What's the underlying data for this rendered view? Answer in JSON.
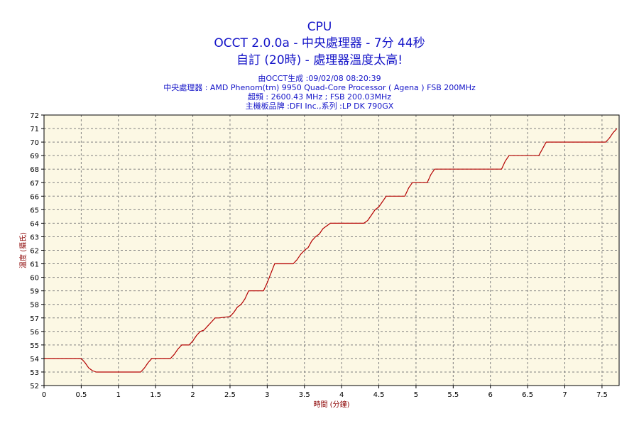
{
  "header": {
    "title": "CPU",
    "subtitle": "OCCT 2.0.0a - 中央處理器 - 7分 44秒",
    "subtitle2": "自訂 (20時) - 處理器溫度太高!",
    "info_generated": "由OCCT生成 :09/02/08 08:20:39",
    "info_cpu": "中央處理器 : AMD Phenom(tm) 9950 Quad-Core Processor ( Agena ) FSB 200MHz",
    "info_freq": "超頻 : 2600.43 MHz ; FSB 200.03MHz",
    "info_board": "主機板品牌 :DFI Inc.,系列 :LP DK 790GX"
  },
  "colors": {
    "plot_bg": "#fcf8e4",
    "line": "#b40000",
    "grid": "#808080",
    "title": "#1414c8",
    "axis_title": "#8b0000"
  },
  "chart_data": {
    "type": "line",
    "xlabel": "時間 (分鐘)",
    "ylabel": "溫度 (攝氏)",
    "xlim": [
      0,
      7.73
    ],
    "ylim": [
      52,
      72
    ],
    "xticks": [
      0,
      0.5,
      1,
      1.5,
      2,
      2.5,
      3,
      3.5,
      4,
      4.5,
      5,
      5.5,
      6,
      6.5,
      7,
      7.5
    ],
    "xtick_labels": [
      "0",
      "0.5",
      "1",
      "1.5",
      "2",
      "2.5",
      "3",
      "3.5",
      "4",
      "4.5",
      "5",
      "5.5",
      "6",
      "6.5",
      "7",
      "7.5"
    ],
    "yticks": [
      52,
      53,
      54,
      55,
      56,
      57,
      58,
      59,
      60,
      61,
      62,
      63,
      64,
      65,
      66,
      67,
      68,
      69,
      70,
      71,
      72
    ],
    "ytick_labels": [
      "52",
      "53",
      "54",
      "55",
      "56",
      "57",
      "58",
      "59",
      "60",
      "61",
      "62",
      "63",
      "64",
      "65",
      "66",
      "67",
      "68",
      "69",
      "70",
      "71",
      "72"
    ],
    "grid": true,
    "series": [
      {
        "x": [
          0,
          0.5,
          0.55,
          0.6,
          0.65,
          0.7,
          1.3,
          1.35,
          1.4,
          1.45,
          1.7,
          1.75,
          1.8,
          1.85,
          1.95,
          2.0,
          2.05,
          2.1,
          2.15,
          2.2,
          2.25,
          2.3,
          2.35,
          2.5,
          2.55,
          2.6,
          2.65,
          2.7,
          2.75,
          2.95,
          3.0,
          3.05,
          3.1,
          3.35,
          3.4,
          3.45,
          3.5,
          3.55,
          3.6,
          3.65,
          3.7,
          3.75,
          3.85,
          3.9,
          4.3,
          4.35,
          4.4,
          4.45,
          4.5,
          4.55,
          4.6,
          4.65,
          4.85,
          4.9,
          4.95,
          5.15,
          5.2,
          5.25,
          5.3,
          6.15,
          6.2,
          6.25,
          6.65,
          6.7,
          6.75,
          6.8,
          7.55,
          7.6,
          7.65,
          7.7
        ],
        "y": [
          54,
          54,
          53.7,
          53.3,
          53.1,
          53,
          53,
          53.3,
          53.7,
          54,
          54,
          54.3,
          54.7,
          55,
          55,
          55.3,
          55.7,
          56,
          56.1,
          56.4,
          56.7,
          57,
          57,
          57.1,
          57.4,
          57.8,
          58,
          58.4,
          59,
          59,
          59.6,
          60.3,
          61,
          61,
          61.3,
          61.7,
          62,
          62.2,
          62.7,
          63,
          63.2,
          63.6,
          64,
          64,
          64,
          64.2,
          64.6,
          65,
          65.2,
          65.6,
          66,
          66,
          66,
          66.6,
          67,
          67,
          67.6,
          68,
          68,
          68,
          68.6,
          69,
          69,
          69.5,
          70,
          70,
          70,
          70.3,
          70.7,
          71
        ]
      }
    ]
  }
}
